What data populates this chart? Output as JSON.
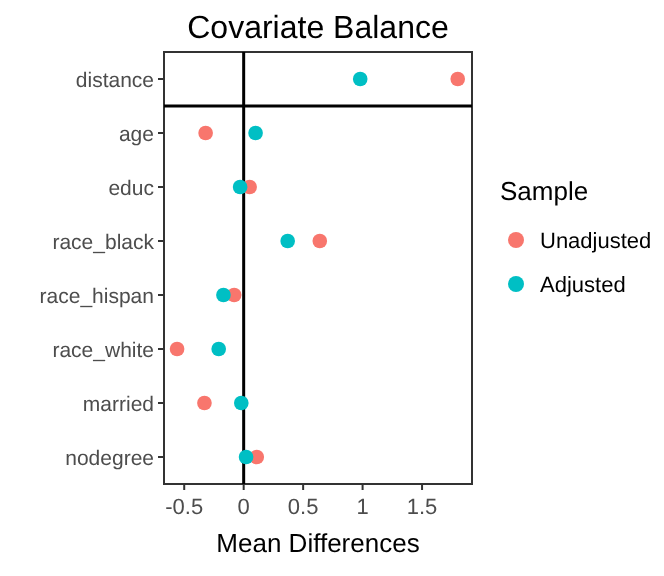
{
  "chart_data": {
    "type": "scatter",
    "title": "Covariate Balance",
    "xlabel": "Mean Differences",
    "legend_title": "Sample",
    "categories": [
      "distance",
      "age",
      "educ",
      "race_black",
      "race_hispan",
      "race_white",
      "married",
      "nodegree"
    ],
    "orientation": "horizontal",
    "xlim": [
      -0.67,
      1.92
    ],
    "xticks": [
      -0.5,
      0,
      0.5,
      1,
      1.5
    ],
    "series": [
      {
        "name": "Unadjusted",
        "color": "#f8766d",
        "values": [
          1.8,
          -0.32,
          0.05,
          0.64,
          -0.08,
          -0.56,
          -0.33,
          0.11
        ]
      },
      {
        "name": "Adjusted",
        "color": "#00bfc4",
        "values": [
          0.98,
          0.1,
          -0.03,
          0.37,
          -0.17,
          -0.21,
          -0.02,
          0.02
        ]
      }
    ],
    "ref_lines": [
      {
        "axis": "x",
        "value": 0
      }
    ],
    "legend": "right",
    "marker": "circle",
    "grid": false
  }
}
